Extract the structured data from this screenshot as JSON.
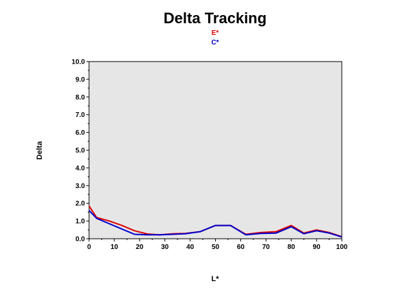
{
  "chart_data": {
    "type": "line",
    "title": "Delta Tracking",
    "xlabel": "L*",
    "ylabel": "Delta",
    "xlim": [
      0,
      100
    ],
    "ylim": [
      0,
      10
    ],
    "x_ticks": [
      "0",
      "10",
      "20",
      "30",
      "40",
      "50",
      "60",
      "70",
      "80",
      "90",
      "100"
    ],
    "y_ticks": [
      "0.0",
      "1.0",
      "2.0",
      "3.0",
      "4.0",
      "5.0",
      "6.0",
      "7.0",
      "8.0",
      "9.0",
      "10.0"
    ],
    "grid": false,
    "legend_position": "top-center",
    "plot_background": "#e6e6e6",
    "series": [
      {
        "name": "E*",
        "color": "#e00000",
        "x": [
          0,
          3,
          8,
          13,
          18,
          23,
          28,
          33,
          38,
          44,
          50,
          56,
          62,
          68,
          74,
          80,
          85,
          90,
          95,
          100
        ],
        "y": [
          1.85,
          1.2,
          1.0,
          0.75,
          0.45,
          0.27,
          0.22,
          0.28,
          0.3,
          0.4,
          0.75,
          0.75,
          0.25,
          0.35,
          0.4,
          0.75,
          0.32,
          0.5,
          0.35,
          0.12
        ]
      },
      {
        "name": "C*",
        "color": "#0000d0",
        "x": [
          0,
          3,
          8,
          13,
          18,
          23,
          28,
          33,
          38,
          44,
          50,
          56,
          62,
          68,
          74,
          80,
          85,
          90,
          95,
          100
        ],
        "y": [
          1.6,
          1.15,
          0.85,
          0.55,
          0.25,
          0.22,
          0.22,
          0.25,
          0.28,
          0.4,
          0.75,
          0.75,
          0.22,
          0.3,
          0.32,
          0.68,
          0.28,
          0.45,
          0.32,
          0.1
        ]
      }
    ]
  }
}
